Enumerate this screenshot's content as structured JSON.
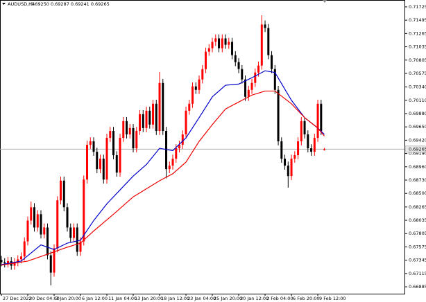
{
  "chart_data": {
    "type": "candlestick",
    "title": "AUDUSD,H4",
    "quote": "0.69250 0.69287 0.69241 0.69265",
    "bull_color": "#ff0000",
    "bear_color": "#000000",
    "categories": [
      "27 Dec 2022",
      null,
      null,
      null,
      null,
      null,
      null,
      null,
      "30 Dec 04:00",
      null,
      null,
      null,
      null,
      null,
      null,
      null,
      "3 Jan 20:00",
      null,
      null,
      null,
      null,
      null,
      null,
      null,
      "6 Jan 12:00",
      null,
      null,
      null,
      null,
      null,
      null,
      null,
      "11 Jan 04:00",
      null,
      null,
      null,
      null,
      null,
      null,
      null,
      "13 Jan 20:00",
      null,
      null,
      null,
      null,
      null,
      null,
      null,
      "18 Jan 12:00",
      null,
      null,
      null,
      null,
      null,
      null,
      null,
      "23 Jan 04:00",
      null,
      null,
      null,
      null,
      null,
      null,
      null,
      "25 Jan 20:00",
      null,
      null,
      null,
      null,
      null,
      null,
      null,
      "30 Jan 12:00",
      null,
      null,
      null,
      null,
      null,
      null,
      null,
      "2 Feb 04:00",
      null,
      null,
      null,
      null,
      null,
      null,
      null,
      "6 Feb 20:00",
      null,
      null,
      null,
      null,
      null,
      null,
      null,
      "9 Feb 12:00",
      null,
      null
    ],
    "open": [
      0.6735,
      0.6731,
      0.6729,
      0.6733,
      0.6725,
      0.6731,
      0.6736,
      0.6741,
      0.6767,
      0.6803,
      0.6826,
      0.6791,
      0.6814,
      0.6779,
      0.6791,
      0.6743,
      0.6713,
      0.6755,
      0.6838,
      0.6872,
      0.6826,
      0.6791,
      0.6773,
      0.6791,
      0.6749,
      0.6767,
      0.6874,
      0.6934,
      0.694,
      0.6922,
      0.6892,
      0.691,
      0.6874,
      0.6946,
      0.6958,
      0.6916,
      0.6886,
      0.6946,
      0.6975,
      0.6952,
      0.6963,
      0.6928,
      0.6958,
      0.6987,
      0.6963,
      0.6993,
      0.6969,
      0.7005,
      0.6958,
      0.7041,
      0.6958,
      0.6892,
      0.6898,
      0.691,
      0.6928,
      0.6934,
      0.6952,
      0.6993,
      0.7005,
      0.7035,
      0.7029,
      0.7047,
      0.7065,
      0.7095,
      0.7101,
      0.7112,
      0.7118,
      0.7101,
      0.7118,
      0.7107,
      0.7112,
      0.7089,
      0.7077,
      0.7065,
      0.7047,
      0.7017,
      0.7029,
      0.7041,
      0.7059,
      0.7071,
      0.7142,
      0.7136,
      0.7089,
      0.7065,
      0.7029,
      0.694,
      0.691,
      0.6898,
      0.688,
      0.691,
      0.6916,
      0.694,
      0.6975,
      0.6952,
      0.6928,
      0.6922,
      0.6946,
      0.7005,
      0.6925
    ],
    "high": [
      0.6742,
      0.6738,
      0.674,
      0.674,
      0.6738,
      0.6743,
      0.6748,
      0.6774,
      0.681,
      0.6836,
      0.6833,
      0.6821,
      0.6821,
      0.6798,
      0.6798,
      0.675,
      0.6762,
      0.6845,
      0.6879,
      0.6879,
      0.6833,
      0.6798,
      0.6798,
      0.6798,
      0.6774,
      0.6881,
      0.6941,
      0.6947,
      0.6947,
      0.6929,
      0.6917,
      0.6917,
      0.6953,
      0.6965,
      0.6965,
      0.6923,
      0.6953,
      0.6982,
      0.6982,
      0.697,
      0.697,
      0.6965,
      0.6994,
      0.6994,
      0.7,
      0.7,
      0.7012,
      0.7012,
      0.706,
      0.7048,
      0.6965,
      0.6905,
      0.6917,
      0.6935,
      0.6941,
      0.6959,
      0.7,
      0.7012,
      0.7042,
      0.7042,
      0.7054,
      0.7072,
      0.7102,
      0.7108,
      0.7119,
      0.7125,
      0.7125,
      0.7125,
      0.7125,
      0.7119,
      0.7119,
      0.7096,
      0.7084,
      0.7072,
      0.7054,
      0.7036,
      0.7048,
      0.7066,
      0.7078,
      0.7158,
      0.7149,
      0.7143,
      0.7096,
      0.7072,
      0.7036,
      0.6947,
      0.6917,
      0.6905,
      0.6917,
      0.6923,
      0.6947,
      0.6982,
      0.6982,
      0.6959,
      0.6935,
      0.6953,
      0.7012,
      0.7012,
      0.69287
    ],
    "low": [
      0.6724,
      0.6722,
      0.6722,
      0.6718,
      0.6718,
      0.6724,
      0.6729,
      0.6734,
      0.676,
      0.6796,
      0.6784,
      0.6784,
      0.6772,
      0.6772,
      0.6736,
      0.6691,
      0.6706,
      0.6748,
      0.6831,
      0.6819,
      0.6784,
      0.6766,
      0.6766,
      0.6742,
      0.6742,
      0.676,
      0.6867,
      0.6927,
      0.6915,
      0.6885,
      0.6885,
      0.6867,
      0.6867,
      0.6939,
      0.6909,
      0.6879,
      0.6879,
      0.6939,
      0.6945,
      0.6945,
      0.6921,
      0.6921,
      0.6951,
      0.6956,
      0.6956,
      0.6962,
      0.6962,
      0.6951,
      0.6951,
      0.6951,
      0.6876,
      0.6885,
      0.6891,
      0.6903,
      0.6921,
      0.6927,
      0.6945,
      0.6986,
      0.6998,
      0.7022,
      0.7022,
      0.704,
      0.7058,
      0.7088,
      0.7094,
      0.7105,
      0.7094,
      0.7094,
      0.71,
      0.71,
      0.7082,
      0.707,
      0.7058,
      0.704,
      0.701,
      0.701,
      0.7022,
      0.7034,
      0.7052,
      0.7064,
      0.7129,
      0.7082,
      0.7058,
      0.7022,
      0.6933,
      0.6903,
      0.6891,
      0.686,
      0.6873,
      0.6903,
      0.6909,
      0.6933,
      0.6945,
      0.6921,
      0.6915,
      0.6915,
      0.6939,
      0.6951,
      0.69241
    ],
    "close": [
      0.6731,
      0.6729,
      0.6733,
      0.6725,
      0.6731,
      0.6736,
      0.6741,
      0.6767,
      0.6803,
      0.6826,
      0.6791,
      0.6814,
      0.6779,
      0.6791,
      0.6743,
      0.6713,
      0.6755,
      0.6838,
      0.6872,
      0.6826,
      0.6791,
      0.6773,
      0.6791,
      0.6749,
      0.6767,
      0.6874,
      0.6934,
      0.694,
      0.6922,
      0.6892,
      0.691,
      0.6874,
      0.6946,
      0.6958,
      0.6916,
      0.6886,
      0.6946,
      0.6975,
      0.6952,
      0.6963,
      0.6928,
      0.6958,
      0.6987,
      0.6963,
      0.6993,
      0.6969,
      0.7005,
      0.6958,
      0.7041,
      0.6958,
      0.6892,
      0.6898,
      0.691,
      0.6928,
      0.6934,
      0.6952,
      0.6993,
      0.7005,
      0.7035,
      0.7029,
      0.7047,
      0.7065,
      0.7095,
      0.7101,
      0.7112,
      0.7118,
      0.7101,
      0.7118,
      0.7107,
      0.7112,
      0.7089,
      0.7077,
      0.7065,
      0.7047,
      0.7017,
      0.7029,
      0.7041,
      0.7059,
      0.7071,
      0.7142,
      0.7136,
      0.7089,
      0.7065,
      0.7029,
      0.694,
      0.691,
      0.6898,
      0.688,
      0.691,
      0.6916,
      0.694,
      0.6975,
      0.6952,
      0.6928,
      0.6922,
      0.6946,
      0.7005,
      0.6958,
      0.69265
    ],
    "overlays": [
      {
        "color": "#0000cc",
        "x": [
          0,
          6,
          12,
          16,
          20,
          24,
          28,
          32,
          36,
          40,
          44,
          48,
          52,
          56,
          60,
          64,
          68,
          72,
          76,
          80,
          83,
          88,
          92,
          96,
          98
        ],
        "values": [
          0.6727,
          0.6733,
          0.6761,
          0.6753,
          0.6764,
          0.6769,
          0.6803,
          0.6832,
          0.6856,
          0.688,
          0.69,
          0.6928,
          0.6924,
          0.6946,
          0.6981,
          0.7017,
          0.7037,
          0.7039,
          0.705,
          0.7062,
          0.7059,
          0.7011,
          0.6981,
          0.6963,
          0.6952
        ]
      },
      {
        "color": "#ee0000",
        "x": [
          0,
          8,
          14,
          20,
          24,
          28,
          34,
          40,
          48,
          52,
          56,
          60,
          64,
          68,
          72,
          76,
          80,
          83,
          88,
          92,
          96,
          98
        ],
        "values": [
          0.6726,
          0.6733,
          0.6745,
          0.6757,
          0.6764,
          0.6785,
          0.6814,
          0.6844,
          0.6872,
          0.6884,
          0.6904,
          0.694,
          0.6969,
          0.6996,
          0.7008,
          0.702,
          0.7027,
          0.7027,
          0.7005,
          0.6981,
          0.6963,
          0.6949
        ]
      }
    ],
    "current_price": {
      "value": 0.69265,
      "label": "0.69265"
    },
    "xlim": [
      -0.42,
      122.3
    ],
    "ylim": [
      0.66766,
      0.71844
    ],
    "yticks": [
      0.71725,
      0.71495,
      0.71265,
      0.71035,
      0.70805,
      0.70575,
      {
        "value": 0.7034,
        "label": "0.70340"
      },
      {
        "value": 0.7011,
        "label": "0.70110"
      },
      {
        "value": 0.6988,
        "label": "0.69880"
      },
      {
        "value": 0.6965,
        "label": "0.69650"
      },
      {
        "value": 0.6942,
        "label": "0.69420"
      },
      {
        "value": 0.6919,
        "label": "0.69190"
      },
      {
        "value": 0.6896,
        "label": "0.68960"
      },
      {
        "value": 0.6873,
        "label": "0.68730"
      },
      {
        "value": 0.685,
        "label": "0.68500"
      },
      0.68265,
      0.68035,
      0.67805,
      0.67575,
      0.67345,
      0.67115,
      0.66885
    ]
  }
}
